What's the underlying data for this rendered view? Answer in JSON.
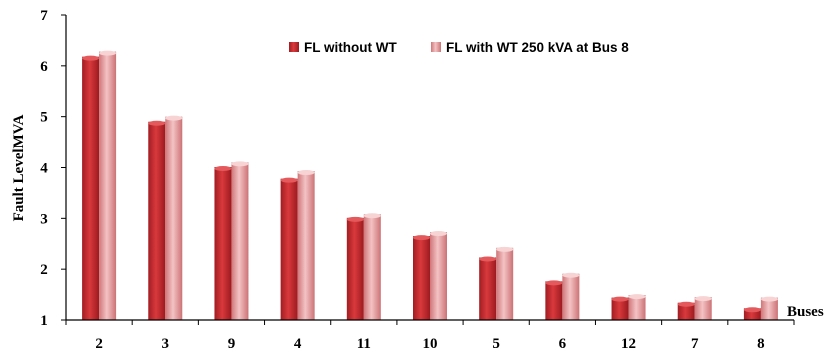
{
  "chart_data": {
    "type": "bar",
    "title": "",
    "xlabel": "Buses",
    "ylabel": "Fault LevelMVA",
    "ylim": [
      1,
      7
    ],
    "yticks": [
      1,
      2,
      3,
      4,
      5,
      6,
      7
    ],
    "grid": false,
    "legend_position": "top-center",
    "categories": [
      "2",
      "3",
      "9",
      "4",
      "11",
      "10",
      "5",
      "6",
      "12",
      "7",
      "8"
    ],
    "series": [
      {
        "name": "FL without WT",
        "color": "#c0282b",
        "values": [
          6.18,
          4.9,
          4.01,
          3.78,
          3.01,
          2.65,
          2.23,
          1.76,
          1.44,
          1.34,
          1.23
        ]
      },
      {
        "name": "FL with WT 250 kVA at Bus 8",
        "color": "#e39a9c",
        "values": [
          6.28,
          5.0,
          4.1,
          3.93,
          3.08,
          2.73,
          2.42,
          1.91,
          1.49,
          1.45,
          1.44
        ]
      }
    ]
  }
}
